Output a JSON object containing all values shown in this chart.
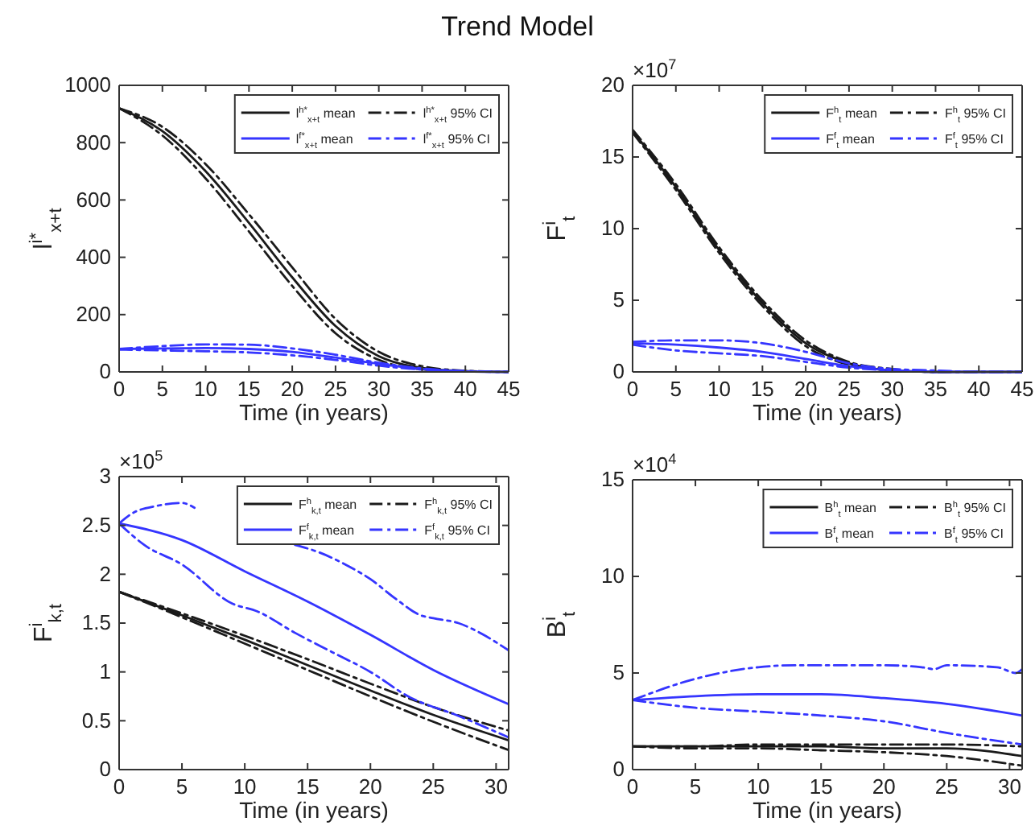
{
  "chart_data": [
    {
      "type": "line",
      "title": "Trend Model",
      "xlabel": "Time (in years)",
      "ylabel": "l$^{i*}$$_{x+t}$",
      "x": [
        0,
        5,
        10,
        15,
        20,
        25,
        30,
        35,
        40,
        45
      ],
      "xlim": [
        0,
        45
      ],
      "xticks": [
        0,
        5,
        10,
        15,
        20,
        25,
        30,
        35,
        40,
        45
      ],
      "ylim": [
        0,
        1000
      ],
      "yticks": [
        0,
        200,
        400,
        600,
        800,
        1000
      ],
      "legend": "top right",
      "series": [
        {
          "name": "l$^{h*}$$_{x+t}$ mean",
          "color": "#1a1a1a",
          "line_style": "solid",
          "values": [
            920,
            840,
            700,
            520,
            330,
            160,
            55,
            14,
            3,
            0
          ]
        },
        {
          "name": "l$^{h*}$$_{x+t}$ 95% CI",
          "color": "#1a1a1a",
          "line_style": "dashed",
          "values": [
            920,
            855,
            725,
            550,
            365,
            185,
            70,
            20,
            4,
            0
          ]
        },
        {
          "color": "#1a1a1a",
          "line_style": "dashed",
          "values": [
            920,
            825,
            675,
            490,
            300,
            135,
            42,
            9,
            1,
            null
          ]
        },
        {
          "name": "l$^{f*}$$_{x+t}$ mean",
          "color": "#3535ff",
          "line_style": "solid",
          "values": [
            80,
            82,
            83,
            80,
            70,
            50,
            28,
            10,
            2,
            0
          ]
        },
        {
          "name": "l$^{f*}$$_{x+t}$ 95% CI",
          "color": "#3535ff",
          "line_style": "dashed",
          "values": [
            80,
            90,
            96,
            95,
            82,
            60,
            32,
            12,
            3,
            0
          ]
        },
        {
          "color": "#3535ff",
          "line_style": "dashed",
          "values": [
            78,
            75,
            72,
            68,
            58,
            42,
            22,
            8,
            1,
            null
          ]
        }
      ]
    },
    {
      "type": "line",
      "xlabel": "Time (in years)",
      "ylabel": "F$^{i}$$_{t}$",
      "annotations": [
        "×10$^{7}$"
      ],
      "x": [
        0,
        5,
        10,
        15,
        20,
        25,
        30,
        35,
        40,
        45
      ],
      "xlim": [
        0,
        45
      ],
      "xticks": [
        0,
        5,
        10,
        15,
        20,
        25,
        30,
        35,
        40,
        45
      ],
      "ylim": [
        0,
        20
      ],
      "yticks": [
        0,
        5,
        10,
        15,
        20
      ],
      "legend": "top right",
      "series": [
        {
          "name": "F$^{h}$$_{t}$ mean",
          "color": "#1a1a1a",
          "line_style": "solid",
          "values": [
            16.8,
            12.9,
            8.5,
            4.8,
            2.0,
            0.6,
            0.1,
            0,
            0,
            0
          ]
        },
        {
          "name": "F$^{h}$$_{t}$ 95% CI",
          "color": "#1a1a1a",
          "line_style": "dashed",
          "values": [
            16.9,
            13.1,
            8.7,
            5.0,
            2.2,
            0.7,
            0.2,
            0,
            0,
            0
          ]
        },
        {
          "color": "#1a1a1a",
          "line_style": "dashed",
          "values": [
            16.7,
            12.7,
            8.3,
            4.6,
            1.8,
            0.5,
            0.1,
            null,
            null,
            null
          ]
        },
        {
          "name": "F$^{f}$$_{t}$ mean",
          "color": "#3535ff",
          "line_style": "solid",
          "values": [
            2.0,
            1.9,
            1.7,
            1.4,
            0.9,
            0.4,
            0.1,
            0,
            0,
            0
          ]
        },
        {
          "name": "F$^{f}$$_{t}$ 95% CI",
          "color": "#3535ff",
          "line_style": "dashed",
          "values": [
            2.1,
            2.2,
            2.2,
            2.0,
            1.4,
            0.6,
            0.2,
            0.1,
            0,
            0
          ]
        },
        {
          "color": "#3535ff",
          "line_style": "dashed",
          "values": [
            1.9,
            1.5,
            1.3,
            1.1,
            0.7,
            0.3,
            0.1,
            0,
            null,
            null
          ]
        }
      ]
    },
    {
      "type": "line",
      "xlabel": "Time (in years)",
      "ylabel": "F$^{i}$$_{k,t}$",
      "annotations": [
        "×10$^{5}$"
      ],
      "x": [
        0,
        5,
        10,
        15,
        20,
        25,
        31
      ],
      "xlim": [
        0,
        31
      ],
      "xticks": [
        0,
        5,
        10,
        15,
        20,
        25,
        30
      ],
      "ylim": [
        0,
        3
      ],
      "yticks": [
        0,
        0.5,
        1,
        1.5,
        2,
        2.5,
        3
      ],
      "legend": "top right",
      "series": [
        {
          "name": "F$^{h}$$_{k,t}$ mean",
          "color": "#1a1a1a",
          "line_style": "solid",
          "values": [
            1.82,
            1.58,
            1.33,
            1.07,
            0.81,
            0.56,
            0.3
          ]
        },
        {
          "name": "F$^{h}$$_{k,t}$ 95% CI",
          "color": "#1a1a1a",
          "line_style": "dashed",
          "values": [
            1.82,
            1.6,
            1.37,
            1.13,
            0.88,
            0.64,
            0.4
          ]
        },
        {
          "color": "#1a1a1a",
          "line_style": "dashed",
          "values": [
            1.82,
            1.56,
            1.29,
            1.02,
            0.75,
            0.49,
            0.2
          ]
        },
        {
          "name": "F$^{f}$$_{k,t}$ mean",
          "color": "#3535ff",
          "line_style": "solid",
          "values": [
            2.52,
            2.35,
            2.03,
            1.72,
            1.38,
            1.02,
            0.67
          ]
        },
        {
          "name": "F$^{f}$$_{k,t}$ 95% CI",
          "color": "#3535ff",
          "line_style": "dashed",
          "x": [
            0,
            1,
            3,
            5,
            6,
            7,
            14,
            16,
            18,
            20,
            22,
            24,
            25,
            27,
            29,
            31
          ],
          "values": [
            2.52,
            2.62,
            2.7,
            2.73,
            2.68,
            null,
            2.3,
            2.22,
            2.1,
            1.95,
            1.75,
            1.58,
            1.55,
            1.5,
            1.38,
            1.22
          ]
        },
        {
          "color": "#3535ff",
          "line_style": "dashed",
          "x": [
            0,
            2,
            5,
            9,
            11,
            14,
            17,
            20,
            23,
            27,
            31
          ],
          "values": [
            2.52,
            2.3,
            2.1,
            1.7,
            1.62,
            1.4,
            1.2,
            1.0,
            0.75,
            0.55,
            0.33
          ]
        }
      ]
    },
    {
      "type": "line",
      "xlabel": "Time (in years)",
      "ylabel": "B$^{i}$$_{t}$",
      "annotations": [
        "×10$^{4}$"
      ],
      "x": [
        0,
        5,
        10,
        15,
        20,
        25,
        31
      ],
      "xlim": [
        0,
        31
      ],
      "xticks": [
        0,
        5,
        10,
        15,
        20,
        25,
        30
      ],
      "ylim": [
        0,
        15
      ],
      "yticks": [
        0,
        5,
        10,
        15
      ],
      "legend": "top right",
      "series": [
        {
          "name": "B$^{h}$$_{t}$ mean",
          "color": "#1a1a1a",
          "line_style": "solid",
          "values": [
            1.2,
            1.2,
            1.2,
            1.2,
            1.1,
            1.1,
            0.7
          ]
        },
        {
          "name": "B$^{h}$$_{t}$ 95% CI",
          "color": "#1a1a1a",
          "line_style": "dashed",
          "values": [
            1.2,
            1.2,
            1.3,
            1.3,
            1.3,
            1.3,
            1.2
          ]
        },
        {
          "color": "#1a1a1a",
          "line_style": "dashed",
          "values": [
            1.2,
            1.1,
            1.1,
            1.0,
            0.9,
            0.7,
            0.2
          ]
        },
        {
          "name": "B$^{f}$$_{t}$ mean",
          "color": "#3535ff",
          "line_style": "solid",
          "values": [
            3.6,
            3.8,
            3.9,
            3.9,
            3.7,
            3.4,
            2.8
          ]
        },
        {
          "name": "B$^{f}$$_{t}$ 95% CI",
          "color": "#3535ff",
          "line_style": "dashed",
          "x": [
            0,
            5,
            10,
            13,
            20,
            23,
            24,
            25,
            29,
            30.5,
            31
          ],
          "values": [
            3.6,
            4.7,
            5.3,
            5.4,
            5.4,
            5.3,
            5.2,
            5.4,
            5.3,
            5.0,
            5.2
          ]
        },
        {
          "color": "#3535ff",
          "line_style": "dashed",
          "values": [
            3.6,
            3.2,
            3.0,
            2.8,
            2.5,
            1.9,
            1.3
          ]
        }
      ]
    }
  ]
}
